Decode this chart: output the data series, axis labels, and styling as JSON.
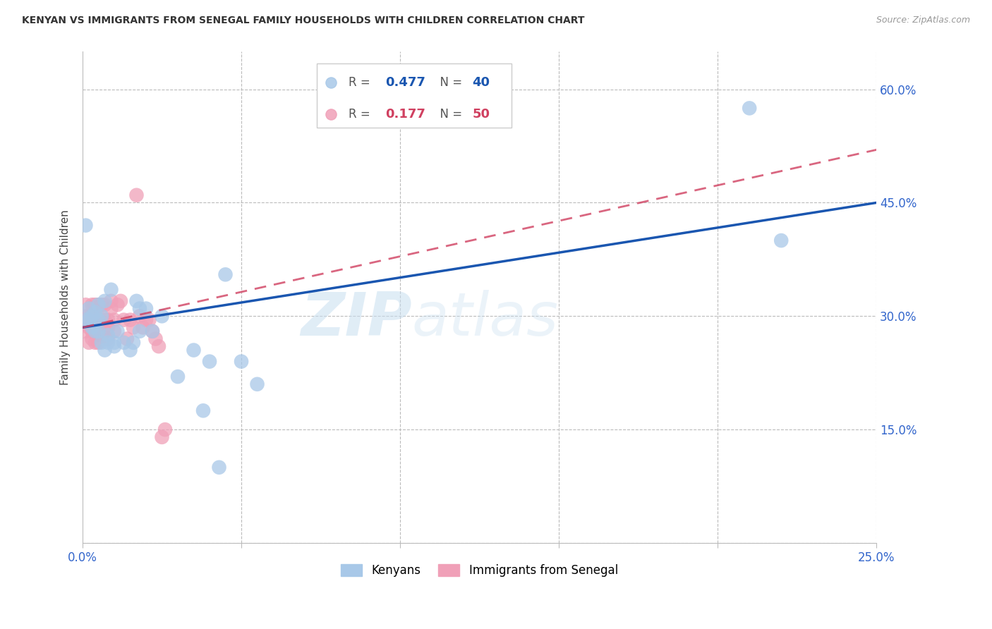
{
  "title": "KENYAN VS IMMIGRANTS FROM SENEGAL FAMILY HOUSEHOLDS WITH CHILDREN CORRELATION CHART",
  "source": "Source: ZipAtlas.com",
  "ylabel": "Family Households with Children",
  "xlim": [
    0.0,
    0.25
  ],
  "ylim": [
    0.0,
    0.65
  ],
  "xticks": [
    0.0,
    0.05,
    0.1,
    0.15,
    0.2,
    0.25
  ],
  "yticks": [
    0.0,
    0.15,
    0.3,
    0.45,
    0.6
  ],
  "ytick_labels": [
    "",
    "15.0%",
    "30.0%",
    "45.0%",
    "60.0%"
  ],
  "xtick_labels": [
    "0.0%",
    "",
    "",
    "",
    "",
    "25.0%"
  ],
  "background_color": "#ffffff",
  "grid_color": "#bbbbbb",
  "kenyan_color": "#a8c8e8",
  "senegal_color": "#f0a0b8",
  "kenyan_line_color": "#1a56b0",
  "senegal_line_color": "#d04060",
  "legend_kenyan_R": "0.477",
  "legend_kenyan_N": "40",
  "legend_senegal_R": "0.177",
  "legend_senegal_N": "50",
  "watermark_zip": "ZIP",
  "watermark_atlas": "atlas",
  "kenyan_x": [
    0.001,
    0.001,
    0.002,
    0.002,
    0.003,
    0.003,
    0.004,
    0.004,
    0.005,
    0.005,
    0.005,
    0.006,
    0.006,
    0.007,
    0.007,
    0.008,
    0.008,
    0.009,
    0.01,
    0.01,
    0.011,
    0.013,
    0.015,
    0.016,
    0.017,
    0.018,
    0.018,
    0.02,
    0.022,
    0.025,
    0.03,
    0.035,
    0.038,
    0.04,
    0.043,
    0.045,
    0.05,
    0.055,
    0.21,
    0.22
  ],
  "kenyan_y": [
    0.295,
    0.42,
    0.31,
    0.295,
    0.3,
    0.285,
    0.305,
    0.28,
    0.315,
    0.28,
    0.295,
    0.3,
    0.265,
    0.32,
    0.255,
    0.265,
    0.275,
    0.335,
    0.265,
    0.26,
    0.28,
    0.265,
    0.255,
    0.265,
    0.32,
    0.28,
    0.31,
    0.31,
    0.28,
    0.3,
    0.22,
    0.255,
    0.175,
    0.24,
    0.1,
    0.355,
    0.24,
    0.21,
    0.575,
    0.4
  ],
  "senegal_x": [
    0.001,
    0.001,
    0.001,
    0.001,
    0.002,
    0.002,
    0.002,
    0.002,
    0.003,
    0.003,
    0.003,
    0.003,
    0.003,
    0.004,
    0.004,
    0.004,
    0.004,
    0.005,
    0.005,
    0.005,
    0.005,
    0.006,
    0.006,
    0.006,
    0.007,
    0.007,
    0.007,
    0.008,
    0.008,
    0.008,
    0.009,
    0.009,
    0.01,
    0.01,
    0.011,
    0.012,
    0.013,
    0.014,
    0.015,
    0.016,
    0.017,
    0.018,
    0.019,
    0.02,
    0.021,
    0.022,
    0.023,
    0.024,
    0.025,
    0.026
  ],
  "senegal_y": [
    0.3,
    0.295,
    0.28,
    0.315,
    0.285,
    0.3,
    0.295,
    0.265,
    0.3,
    0.315,
    0.28,
    0.295,
    0.27,
    0.295,
    0.265,
    0.315,
    0.3,
    0.285,
    0.315,
    0.265,
    0.3,
    0.29,
    0.275,
    0.315,
    0.28,
    0.295,
    0.315,
    0.27,
    0.285,
    0.295,
    0.32,
    0.31,
    0.28,
    0.295,
    0.315,
    0.32,
    0.295,
    0.27,
    0.295,
    0.285,
    0.46,
    0.3,
    0.285,
    0.295,
    0.295,
    0.28,
    0.27,
    0.26,
    0.14,
    0.15
  ]
}
